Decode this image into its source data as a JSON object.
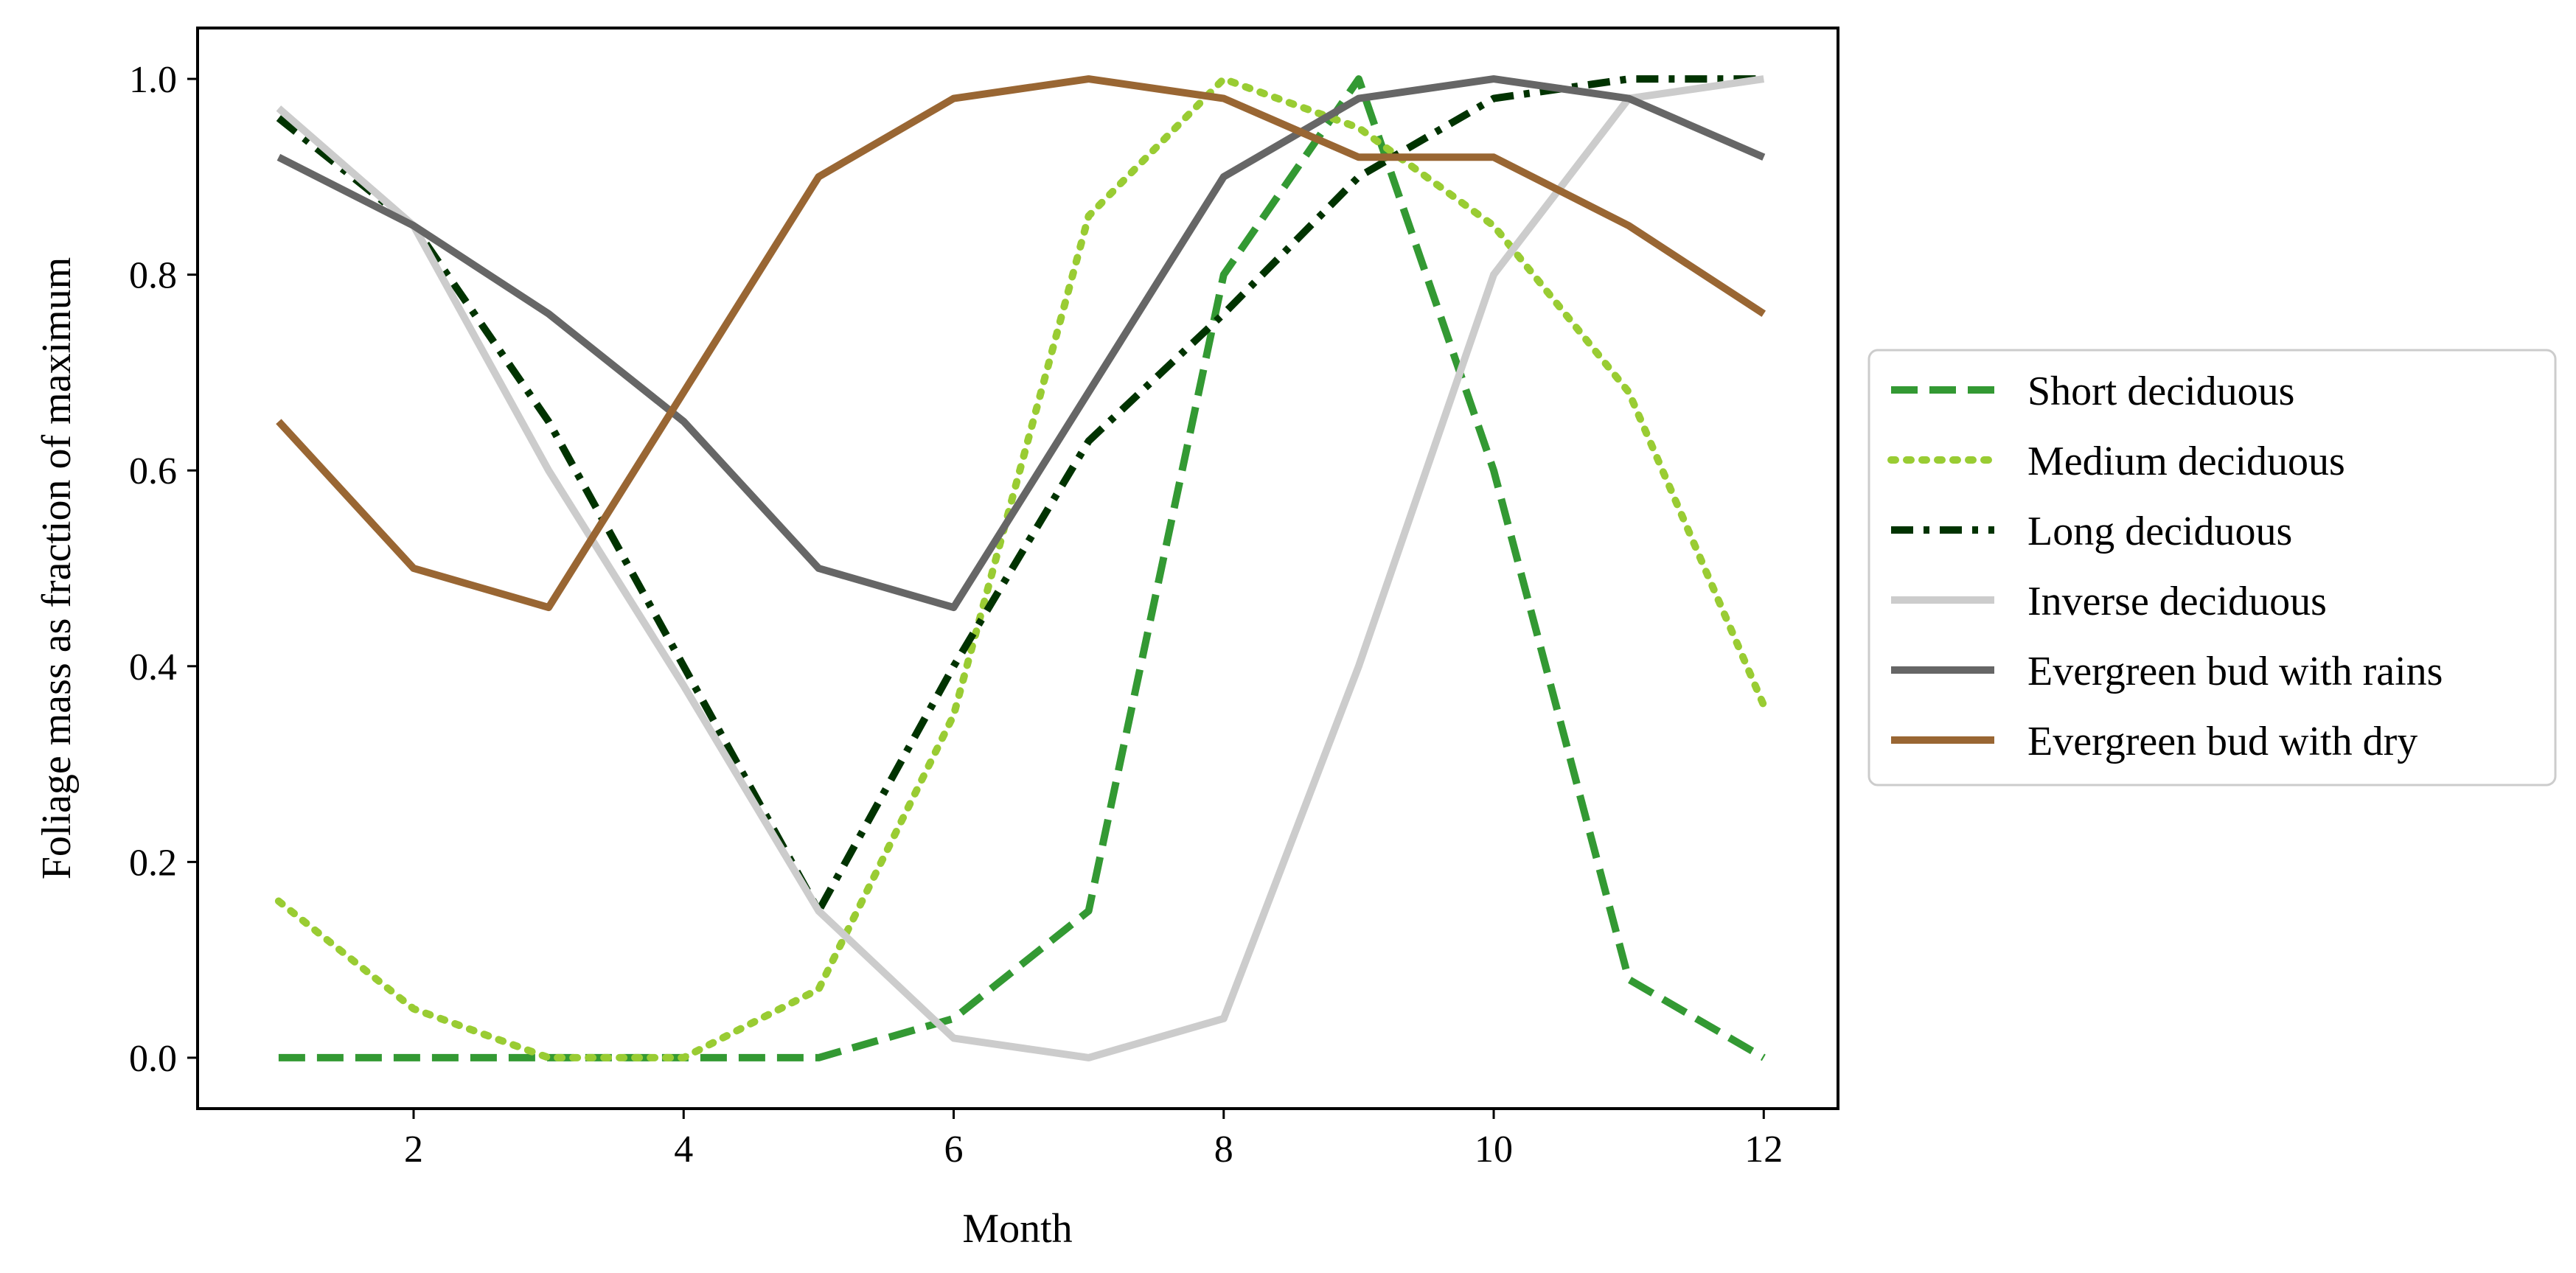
{
  "chart_data": {
    "type": "line",
    "title": "",
    "xlabel": "Month",
    "ylabel": "Foliage mass as fraction of maximum",
    "xlim": [
      0.4,
      12.55
    ],
    "ylim": [
      -0.052,
      1.052
    ],
    "xticks": [
      2,
      4,
      6,
      8,
      10,
      12
    ],
    "yticks": [
      0.0,
      0.2,
      0.4,
      0.6,
      0.8,
      1.0
    ],
    "xtick_labels": [
      "2",
      "4",
      "6",
      "8",
      "10",
      "12"
    ],
    "ytick_labels": [
      "0.0",
      "0.2",
      "0.4",
      "0.6",
      "0.8",
      "1.0"
    ],
    "legend_position": "outside-right",
    "x": [
      1,
      2,
      3,
      4,
      5,
      6,
      7,
      8,
      9,
      10,
      11,
      12
    ],
    "series": [
      {
        "name": "Short deciduous",
        "color": "#339933",
        "style": "dashed",
        "values": [
          0.0,
          0.0,
          0.0,
          0.0,
          0.0,
          0.04,
          0.15,
          0.8,
          1.0,
          0.6,
          0.08,
          0.0
        ]
      },
      {
        "name": "Medium deciduous",
        "color": "#99cc33",
        "style": "dotted",
        "values": [
          0.16,
          0.05,
          0.0,
          0.0,
          0.07,
          0.35,
          0.86,
          1.0,
          0.95,
          0.85,
          0.68,
          0.36
        ]
      },
      {
        "name": "Long deciduous",
        "color": "#003300",
        "style": "dashdot",
        "values": [
          0.96,
          0.85,
          0.65,
          0.4,
          0.15,
          0.4,
          0.63,
          0.76,
          0.9,
          0.98,
          1.0,
          1.0
        ]
      },
      {
        "name": "Inverse deciduous",
        "color": "#cccccc",
        "style": "solid",
        "values": [
          0.97,
          0.85,
          0.6,
          0.38,
          0.15,
          0.02,
          0.0,
          0.04,
          0.4,
          0.8,
          0.98,
          1.0
        ]
      },
      {
        "name": "Evergreen bud with rains",
        "color": "#666666",
        "style": "solid",
        "values": [
          0.92,
          0.85,
          0.76,
          0.65,
          0.5,
          0.46,
          0.68,
          0.9,
          0.98,
          1.0,
          0.98,
          0.92
        ]
      },
      {
        "name": "Evergreen bud with dry",
        "color": "#996633",
        "style": "solid",
        "values": [
          0.65,
          0.5,
          0.46,
          0.68,
          0.9,
          0.98,
          1.0,
          0.98,
          0.92,
          0.92,
          0.85,
          0.76
        ]
      }
    ]
  }
}
